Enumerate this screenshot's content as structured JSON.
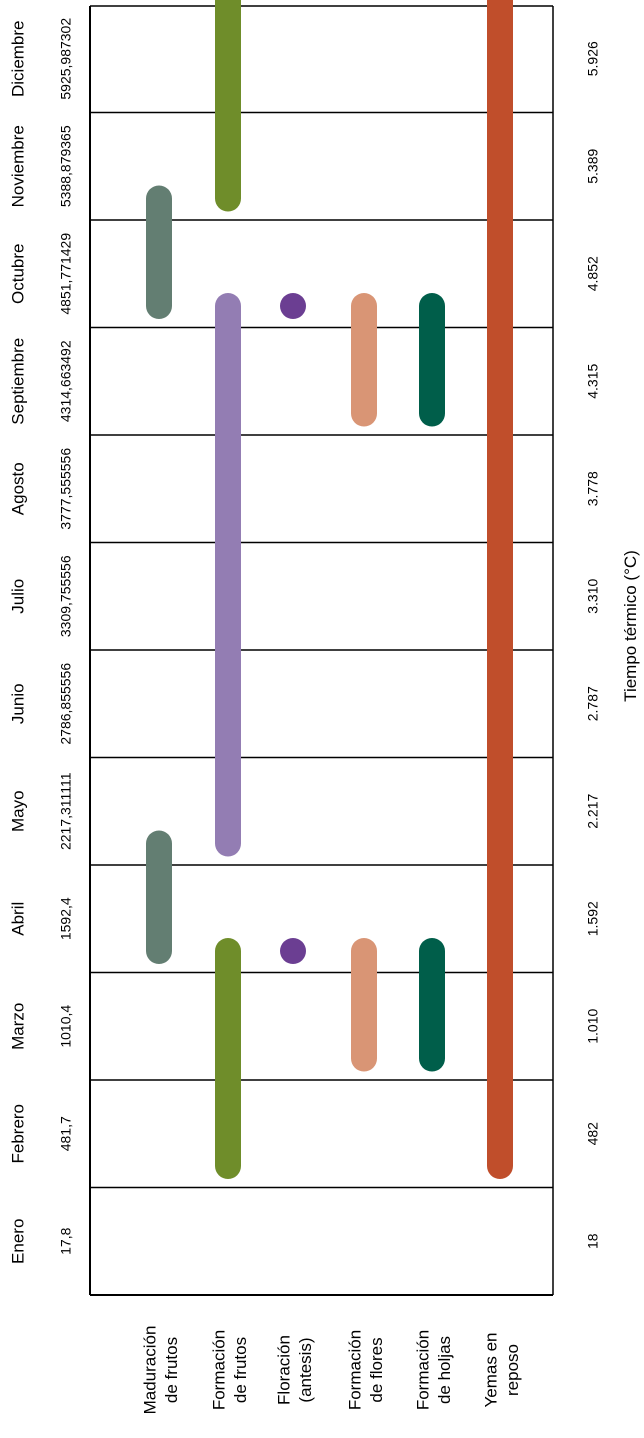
{
  "chart_data": {
    "type": "gantt",
    "orientation": "rotated",
    "xlabel": "Tiempo térmico (°C)",
    "months": [
      "Enero",
      "Febrero",
      "Marzo",
      "Abril",
      "Mayo",
      "Junio",
      "Julio",
      "Agosto",
      "Septiembre",
      "Octubre",
      "Noviembre",
      "Diciembre"
    ],
    "thermal_raw": [
      "17,8",
      "481,7",
      "1010,4",
      "1592,4",
      "2217,311111",
      "2786,855556",
      "3309,755556",
      "3777,555556",
      "4314,663492",
      "4851,771429",
      "5388,879365",
      "5925,987302"
    ],
    "thermal_rounded": [
      "18",
      "482",
      "1.010",
      "1.592",
      "2.217",
      "2.787",
      "3.310",
      "3.778",
      "4.315",
      "4.852",
      "5.389",
      "5.926"
    ],
    "categories": [
      {
        "label": [
          "Maduración",
          "de frutos"
        ]
      },
      {
        "label": [
          "Formación",
          "de frutos"
        ]
      },
      {
        "label": [
          "Floración",
          "(antesis)"
        ]
      },
      {
        "label": [
          "Formación",
          "de flores"
        ]
      },
      {
        "label": [
          "Formación",
          "de holjas"
        ]
      },
      {
        "label": [
          "Yemas en",
          "reposo"
        ]
      }
    ],
    "bars": [
      {
        "category": 0,
        "start_month": 3.2,
        "end_month": 4.2,
        "color": "#637e72"
      },
      {
        "category": 0,
        "start_month": 9.2,
        "end_month": 10.2,
        "color": "#637e72"
      },
      {
        "category": 1,
        "start_month": 1.2,
        "end_month": 3.2,
        "color": "#6f8d2a"
      },
      {
        "category": 1,
        "start_month": 10.2,
        "end_month": 12.2,
        "color": "#6f8d2a"
      },
      {
        "category": 1,
        "start_month": 4.2,
        "end_month": 9.2,
        "color": "#937db3"
      },
      {
        "category": 2,
        "start_month": 3.2,
        "end_month": 3.2,
        "color": "#6b3e92"
      },
      {
        "category": 2,
        "start_month": 9.2,
        "end_month": 9.2,
        "color": "#6b3e92"
      },
      {
        "category": 3,
        "start_month": 2.2,
        "end_month": 3.2,
        "color": "#d99575"
      },
      {
        "category": 3,
        "start_month": 8.2,
        "end_month": 9.2,
        "color": "#d99575"
      },
      {
        "category": 4,
        "start_month": 2.2,
        "end_month": 3.2,
        "color": "#005e4a"
      },
      {
        "category": 4,
        "start_month": 8.2,
        "end_month": 9.2,
        "color": "#005e4a"
      },
      {
        "category": 5,
        "start_month": 1.2,
        "end_month": 12.2,
        "color": "#c04e2b"
      }
    ]
  }
}
